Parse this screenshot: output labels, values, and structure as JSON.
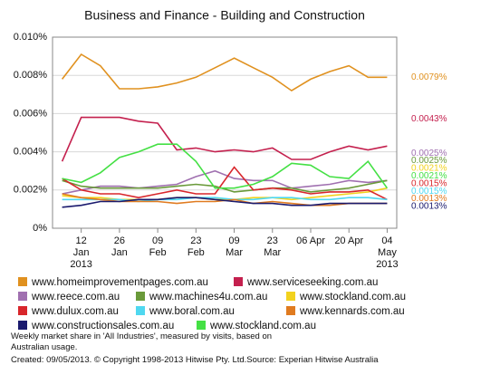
{
  "chart_data": {
    "type": "line",
    "title": "Business and Finance - Building and Construction",
    "categories": [
      null,
      "12 Jan 2013",
      null,
      "26 Jan",
      null,
      "09 Feb",
      null,
      "23 Feb",
      null,
      "09 Mar",
      null,
      "23 Mar",
      null,
      "06 Apr",
      null,
      "20 Apr",
      null,
      "04 May 2013"
    ],
    "ylim": [
      0,
      0.01
    ],
    "yticks": [
      {
        "value": 0,
        "label": "0%"
      },
      {
        "value": 0.002,
        "label": "0.002%"
      },
      {
        "value": 0.004,
        "label": "0.004%"
      },
      {
        "value": 0.006,
        "label": "0.006%"
      },
      {
        "value": 0.008,
        "label": "0.008%"
      },
      {
        "value": 0.01,
        "label": "0.010%"
      }
    ],
    "grid": true,
    "series": [
      {
        "name": "www.homeimprovementpages.com.au",
        "color": "#e0911f",
        "values": [
          0.0078,
          0.0091,
          0.0085,
          0.0073,
          0.0073,
          0.0074,
          0.0076,
          0.0079,
          0.0084,
          0.0089,
          0.0084,
          0.0079,
          0.0072,
          0.0078,
          0.0082,
          0.0085,
          0.0079,
          0.0079
        ],
        "value_labels": [
          null,
          null,
          null,
          null,
          null,
          null,
          null,
          null,
          null,
          null,
          null,
          null,
          null,
          null,
          null,
          null,
          null,
          "0.0079%"
        ]
      },
      {
        "name": "www.serviceseeking.com.au",
        "color": "#c4204e",
        "values": [
          0.0035,
          0.0058,
          0.0058,
          0.0058,
          0.0056,
          0.0055,
          0.0041,
          0.0042,
          0.004,
          0.0041,
          0.004,
          0.0042,
          0.0036,
          0.0036,
          0.004,
          0.0043,
          0.0041,
          0.0043
        ],
        "value_labels": [
          null,
          null,
          null,
          null,
          null,
          null,
          null,
          null,
          null,
          null,
          null,
          null,
          null,
          null,
          null,
          null,
          null,
          "0.0043%"
        ]
      },
      {
        "name": "www.reece.com.au",
        "color": "#a070b0",
        "values": [
          0.0018,
          0.002,
          0.0022,
          0.0022,
          0.0021,
          0.0022,
          0.0023,
          0.0027,
          0.003,
          0.0026,
          0.0025,
          0.0025,
          0.0021,
          0.0022,
          0.0023,
          0.0025,
          0.0024,
          0.0025
        ],
        "value_labels": [
          null,
          null,
          null,
          null,
          null,
          null,
          null,
          null,
          null,
          null,
          null,
          null,
          null,
          null,
          null,
          null,
          null,
          "0.0025%"
        ]
      },
      {
        "name": "www.machines4u.com.au",
        "color": "#6a9a3a",
        "values": [
          0.0025,
          0.0022,
          0.0021,
          0.0021,
          0.0021,
          0.0021,
          0.0022,
          0.0023,
          0.0022,
          0.0019,
          0.002,
          0.0021,
          0.0021,
          0.0019,
          0.002,
          0.0021,
          0.0023,
          0.0025
        ],
        "value_labels": [
          null,
          null,
          null,
          null,
          null,
          null,
          null,
          null,
          null,
          null,
          null,
          null,
          null,
          null,
          null,
          null,
          null,
          "0.0025%"
        ]
      },
      {
        "name": "www.stockland.com.au",
        "color": "#f2d21e",
        "values": [
          0.0017,
          0.0016,
          0.0016,
          0.0015,
          0.0015,
          0.0015,
          0.0016,
          0.0016,
          0.0015,
          0.0015,
          0.0016,
          0.0016,
          0.0015,
          0.0016,
          0.0017,
          0.0018,
          0.0019,
          0.0021
        ],
        "value_labels": [
          null,
          null,
          null,
          null,
          null,
          null,
          null,
          null,
          null,
          null,
          null,
          null,
          null,
          null,
          null,
          null,
          null,
          "0.0021%"
        ]
      },
      {
        "name": "www.dulux.com.au",
        "color": "#d8262b",
        "values": [
          0.0026,
          0.002,
          0.0018,
          0.0018,
          0.0016,
          0.0018,
          0.002,
          0.0018,
          0.0018,
          0.0032,
          0.002,
          0.0021,
          0.002,
          0.0018,
          0.0019,
          0.0019,
          0.002,
          0.0015
        ],
        "value_labels": [
          null,
          null,
          null,
          null,
          null,
          null,
          null,
          null,
          null,
          null,
          null,
          null,
          null,
          null,
          null,
          null,
          null,
          "0.0015%"
        ]
      },
      {
        "name": "www.boral.com.au",
        "color": "#4fd8f0",
        "values": [
          0.0015,
          0.0015,
          0.0015,
          0.0015,
          0.0014,
          0.0015,
          0.0015,
          0.0016,
          0.0016,
          0.0015,
          0.0015,
          0.0016,
          0.0016,
          0.0015,
          0.0015,
          0.0016,
          0.0016,
          0.0015
        ],
        "value_labels": [
          null,
          null,
          null,
          null,
          null,
          null,
          null,
          null,
          null,
          null,
          null,
          null,
          null,
          null,
          null,
          null,
          null,
          "0.0015%"
        ]
      },
      {
        "name": "www.kennards.com.au",
        "color": "#e07b20",
        "values": [
          0.0018,
          0.0016,
          0.0015,
          0.0014,
          0.0014,
          0.0014,
          0.0013,
          0.0014,
          0.0014,
          0.0015,
          0.0013,
          0.0014,
          0.0013,
          0.0012,
          0.0012,
          0.0013,
          0.0013,
          0.0013
        ],
        "value_labels": [
          null,
          null,
          null,
          null,
          null,
          null,
          null,
          null,
          null,
          null,
          null,
          null,
          null,
          null,
          null,
          null,
          null,
          "0.0013%"
        ]
      },
      {
        "name": "www.constructionsales.com.au",
        "color": "#1a1a6e",
        "values": [
          0.0011,
          0.0012,
          0.0014,
          0.0014,
          0.0015,
          0.0015,
          0.0016,
          0.0016,
          0.0015,
          0.0014,
          0.0013,
          0.0013,
          0.0012,
          0.0012,
          0.0013,
          0.0013,
          0.0013,
          0.0013
        ],
        "value_labels": [
          null,
          null,
          null,
          null,
          null,
          null,
          null,
          null,
          null,
          null,
          null,
          null,
          null,
          null,
          null,
          null,
          null,
          "0.0013%"
        ]
      },
      {
        "name": "www.stockland.com.au",
        "color": "#44e044",
        "values": [
          0.0026,
          0.0024,
          0.0029,
          0.0037,
          0.004,
          0.0044,
          0.0044,
          0.0035,
          0.0021,
          0.0021,
          0.0023,
          0.0027,
          0.0034,
          0.0033,
          0.0027,
          0.0026,
          0.0035,
          0.0021
        ],
        "value_labels": [
          null,
          null,
          null,
          null,
          null,
          null,
          null,
          null,
          null,
          null,
          null,
          null,
          null,
          null,
          null,
          null,
          null,
          "0.0021%"
        ]
      }
    ],
    "footnote": "Weekly market share in 'All Industries', measured by visits, based on Australian usage.",
    "credit": "Created: 09/05/2013. © Copyright 1998-2013 Hitwise Pty. Ltd.Source: Experian Hitwise Australia"
  }
}
